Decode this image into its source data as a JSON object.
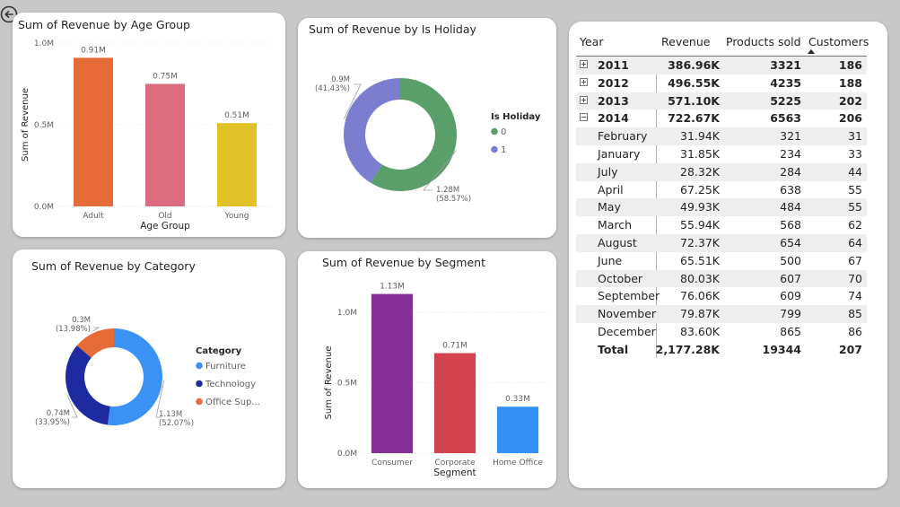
{
  "nav": {
    "back_icon": "back-arrow-icon"
  },
  "age_chart": {
    "title": "Sum of Revenue by Age Group",
    "chart_data": {
      "type": "bar",
      "categories": [
        "Adult",
        "Old",
        "Young"
      ],
      "values": [
        0.91,
        0.75,
        0.51
      ],
      "data_labels": [
        "0.91M",
        "0.75M",
        "0.51M"
      ],
      "colors": [
        "#e66c37",
        "#dd6b7f",
        "#e0c227"
      ],
      "xlabel": "Age Group",
      "ylabel": "Sum of Revenue",
      "yticks": [
        "0.0M",
        "0.5M",
        "1.0M"
      ],
      "ylim": [
        0,
        1.0
      ]
    }
  },
  "holiday_chart": {
    "title": "Sum of Revenue by Is Holiday",
    "chart_data": {
      "type": "pie",
      "labels": [
        "0",
        "1"
      ],
      "values": [
        1.28,
        0.9
      ],
      "data_labels": [
        "1.28M",
        "0.9M"
      ],
      "percent_labels": [
        "(58.57%)",
        "(41.43%)"
      ],
      "colors": [
        "#5a9e69",
        "#7b7ecf"
      ],
      "legend_title": "Is Holiday",
      "legend": [
        "0",
        "1"
      ]
    }
  },
  "category_chart": {
    "title": "Sum of Revenue by Category",
    "chart_data": {
      "type": "pie",
      "labels": [
        "Furniture",
        "Technology",
        "Office Sup..."
      ],
      "values": [
        1.13,
        0.74,
        0.3
      ],
      "data_labels": [
        "1.13M",
        "0.74M",
        "0.3M"
      ],
      "percent_labels": [
        "(52.07%)",
        "(33.95%)",
        "(13.98%)"
      ],
      "colors": [
        "#3a92f5",
        "#1d2aa0",
        "#e66c37"
      ],
      "legend_title": "Category",
      "legend": [
        "Furniture",
        "Technology",
        "Office Sup..."
      ]
    }
  },
  "segment_chart": {
    "title": "Sum of Revenue by Segment",
    "chart_data": {
      "type": "bar",
      "categories": [
        "Consumer",
        "Corporate",
        "Home Office"
      ],
      "values": [
        1.13,
        0.71,
        0.33
      ],
      "data_labels": [
        "1.13M",
        "0.71M",
        "0.33M"
      ],
      "colors": [
        "#862f96",
        "#d1414e",
        "#3390f5"
      ],
      "xlabel": "Segment",
      "ylabel": "Sum of Revenue",
      "yticks": [
        "0.0M",
        "0.5M",
        "1.0M"
      ],
      "ylim": [
        0,
        1.0
      ]
    }
  },
  "matrix": {
    "headers": [
      "Year",
      "Revenue",
      "Products sold",
      "Customers"
    ],
    "sort_icon": "sort-descending-icon",
    "rows": [
      {
        "label": "2011",
        "revenue": "386.96K",
        "products": "3321",
        "customers": "186",
        "level": "year",
        "expand": "plus"
      },
      {
        "label": "2012",
        "revenue": "496.55K",
        "products": "4235",
        "customers": "188",
        "level": "year",
        "expand": "plus"
      },
      {
        "label": "2013",
        "revenue": "571.10K",
        "products": "5225",
        "customers": "202",
        "level": "year",
        "expand": "plus"
      },
      {
        "label": "2014",
        "revenue": "722.67K",
        "products": "6563",
        "customers": "206",
        "level": "year",
        "expand": "minus"
      },
      {
        "label": "February",
        "revenue": "31.94K",
        "products": "321",
        "customers": "31",
        "level": "month"
      },
      {
        "label": "January",
        "revenue": "31.85K",
        "products": "234",
        "customers": "33",
        "level": "month"
      },
      {
        "label": "July",
        "revenue": "28.32K",
        "products": "284",
        "customers": "44",
        "level": "month"
      },
      {
        "label": "April",
        "revenue": "67.25K",
        "products": "638",
        "customers": "55",
        "level": "month"
      },
      {
        "label": "May",
        "revenue": "49.93K",
        "products": "484",
        "customers": "55",
        "level": "month"
      },
      {
        "label": "March",
        "revenue": "55.94K",
        "products": "568",
        "customers": "62",
        "level": "month"
      },
      {
        "label": "August",
        "revenue": "72.37K",
        "products": "654",
        "customers": "64",
        "level": "month"
      },
      {
        "label": "June",
        "revenue": "65.51K",
        "products": "500",
        "customers": "67",
        "level": "month"
      },
      {
        "label": "October",
        "revenue": "80.03K",
        "products": "607",
        "customers": "70",
        "level": "month"
      },
      {
        "label": "September",
        "revenue": "76.06K",
        "products": "609",
        "customers": "74",
        "level": "month"
      },
      {
        "label": "November",
        "revenue": "79.87K",
        "products": "799",
        "customers": "85",
        "level": "month"
      },
      {
        "label": "December",
        "revenue": "83.60K",
        "products": "865",
        "customers": "86",
        "level": "month"
      }
    ],
    "total": {
      "label": "Total",
      "revenue": "2,177.28K",
      "products": "19344",
      "customers": "207"
    }
  }
}
